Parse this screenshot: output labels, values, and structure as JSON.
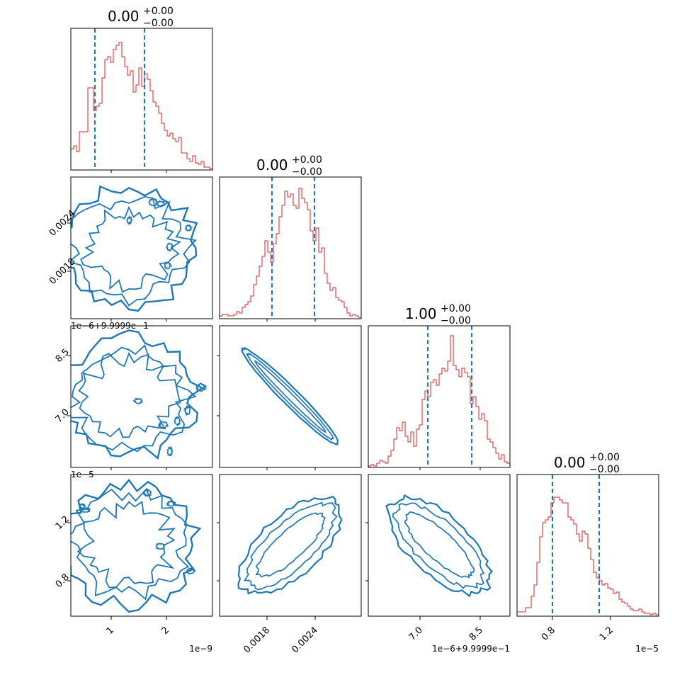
{
  "chart_data": {
    "type": "corner",
    "colors": {
      "histogram": "#d62728",
      "contour": "#1f77b4",
      "quantile": "#1f77b4",
      "frame": "#000000"
    },
    "parameters": [
      {
        "index": 0,
        "title_value": "0.00",
        "title_plus": "+0.00",
        "title_minus": "−0.00",
        "x_tick_labels": [
          "1",
          "2"
        ],
        "x_offset_label": "1e−9",
        "y_tick_labels": [],
        "y_offset_label": "",
        "quantile_positions": [
          0.17,
          0.52
        ],
        "histogram": [
          0.15,
          0.17,
          0.13,
          0.27,
          0.27,
          0.27,
          0.58,
          0.58,
          0.42,
          0.45,
          0.47,
          0.65,
          0.78,
          0.8,
          0.76,
          0.85,
          0.88,
          0.9,
          0.8,
          0.73,
          0.67,
          0.7,
          0.55,
          0.6,
          0.72,
          0.59,
          0.68,
          0.64,
          0.56,
          0.48,
          0.45,
          0.4,
          0.33,
          0.28,
          0.24,
          0.26,
          0.22,
          0.2,
          0.23,
          0.12,
          0.12,
          0.08,
          0.06,
          0.1,
          0.05,
          0.04,
          0.06,
          0.02,
          0.02,
          0.01
        ]
      },
      {
        "index": 1,
        "title_value": "0.00",
        "title_plus": "+0.00",
        "title_minus": "−0.00",
        "x_tick_labels": [
          "0.0018",
          "0.0024"
        ],
        "x_offset_label": "",
        "y_tick_labels": [
          "0.0018",
          "0.0024"
        ],
        "y_offset_label": "",
        "quantile_positions": [
          0.37,
          0.67
        ],
        "histogram": [
          0.02,
          0.03,
          0.03,
          0.02,
          0.02,
          0.03,
          0.05,
          0.04,
          0.08,
          0.1,
          0.12,
          0.16,
          0.24,
          0.3,
          0.37,
          0.44,
          0.55,
          0.47,
          0.4,
          0.53,
          0.6,
          0.72,
          0.8,
          0.9,
          0.86,
          0.88,
          0.8,
          0.78,
          0.92,
          0.85,
          0.82,
          0.77,
          0.62,
          0.55,
          0.64,
          0.47,
          0.5,
          0.32,
          0.25,
          0.2,
          0.22,
          0.15,
          0.13,
          0.12,
          0.08,
          0.04,
          0.02,
          0.03,
          0.02,
          0.01
        ]
      },
      {
        "index": 2,
        "title_value": "1.00",
        "title_plus": "+0.00",
        "title_minus": "−0.00",
        "x_tick_labels": [
          "7.0",
          "8.5"
        ],
        "x_offset_label": "1e−6+9.9999e−1",
        "y_tick_labels": [
          "7.0",
          "8.5"
        ],
        "y_offset_label": "1e−6+9.9999e−1",
        "quantile_positions": [
          0.42,
          0.73
        ],
        "histogram": [
          0.01,
          0.02,
          0.01,
          0.03,
          0.05,
          0.04,
          0.03,
          0.08,
          0.12,
          0.2,
          0.28,
          0.26,
          0.32,
          0.22,
          0.18,
          0.25,
          0.15,
          0.27,
          0.3,
          0.48,
          0.54,
          0.5,
          0.6,
          0.62,
          0.58,
          0.66,
          0.7,
          0.68,
          0.75,
          0.93,
          0.72,
          0.69,
          0.64,
          0.7,
          0.67,
          0.64,
          0.45,
          0.5,
          0.43,
          0.34,
          0.38,
          0.33,
          0.2,
          0.18,
          0.14,
          0.1,
          0.06,
          0.09,
          0.04,
          0.03
        ]
      },
      {
        "index": 3,
        "title_value": "0.00",
        "title_plus": "+0.00",
        "title_minus": "−0.00",
        "x_tick_labels": [
          "0.8",
          "1.2"
        ],
        "x_offset_label": "1e−5",
        "y_tick_labels": [
          "0.8",
          "1.2"
        ],
        "y_offset_label": "1e−5",
        "quantile_positions": [
          0.25,
          0.58
        ],
        "histogram": [
          0.03,
          0.03,
          0.03,
          0.06,
          0.06,
          0.14,
          0.22,
          0.38,
          0.56,
          0.66,
          0.68,
          0.7,
          0.8,
          0.84,
          0.84,
          0.82,
          0.8,
          0.8,
          0.7,
          0.68,
          0.65,
          0.58,
          0.53,
          0.6,
          0.58,
          0.48,
          0.4,
          0.31,
          0.27,
          0.25,
          0.22,
          0.23,
          0.2,
          0.19,
          0.16,
          0.17,
          0.12,
          0.1,
          0.09,
          0.07,
          0.05,
          0.04,
          0.04,
          0.05,
          0.03,
          0.02,
          0.02,
          0.01,
          0.02,
          0.01
        ]
      }
    ],
    "pairs": [
      {
        "row": 1,
        "col": 0,
        "shape": "ring",
        "correlation": 0.0
      },
      {
        "row": 2,
        "col": 0,
        "shape": "ring",
        "correlation": 0.0
      },
      {
        "row": 3,
        "col": 0,
        "shape": "ring",
        "correlation": 0.0
      },
      {
        "row": 2,
        "col": 1,
        "shape": "ellipse",
        "correlation": -0.99
      },
      {
        "row": 3,
        "col": 1,
        "shape": "ellipse",
        "correlation": 0.85
      },
      {
        "row": 3,
        "col": 2,
        "shape": "ellipse",
        "correlation": -0.85
      }
    ]
  }
}
